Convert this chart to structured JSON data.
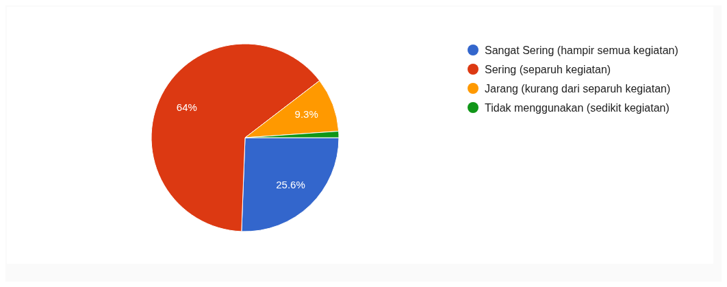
{
  "chart_data": {
    "type": "pie",
    "categories": [
      "Sangat Sering (hampir semua kegiatan)",
      "Sering (separuh kegiatan)",
      "Jarang (kurang dari separuh kegiatan)",
      "Tidak menggunakan (sedikit kegiatan)"
    ],
    "values": [
      25.6,
      64,
      9.3,
      1.1
    ],
    "value_labels": [
      "25.6%",
      "64%",
      "9.3%",
      null
    ],
    "colors": [
      "#3366cc",
      "#dc3912",
      "#ff9900",
      "#109618"
    ],
    "legend": "right"
  }
}
